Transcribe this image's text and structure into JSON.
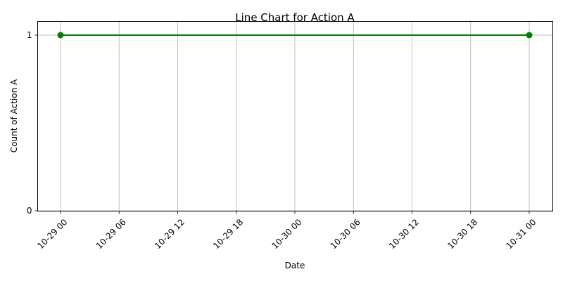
{
  "chart_data": {
    "type": "line",
    "title": "Line Chart for Action A",
    "xlabel": "Date",
    "ylabel": "Count of Action A",
    "x_ticks": [
      "10-29 00",
      "10-29 06",
      "10-29 12",
      "10-29 18",
      "10-30 00",
      "10-30 06",
      "10-30 12",
      "10-30 18",
      "10-31 00"
    ],
    "y_ticks": [
      "0",
      "1"
    ],
    "ylim": [
      0,
      1
    ],
    "grid": true,
    "series": [
      {
        "color": "#008000",
        "x": [
          "10-29 00",
          "10-31 00"
        ],
        "y": [
          1,
          1
        ]
      }
    ]
  }
}
